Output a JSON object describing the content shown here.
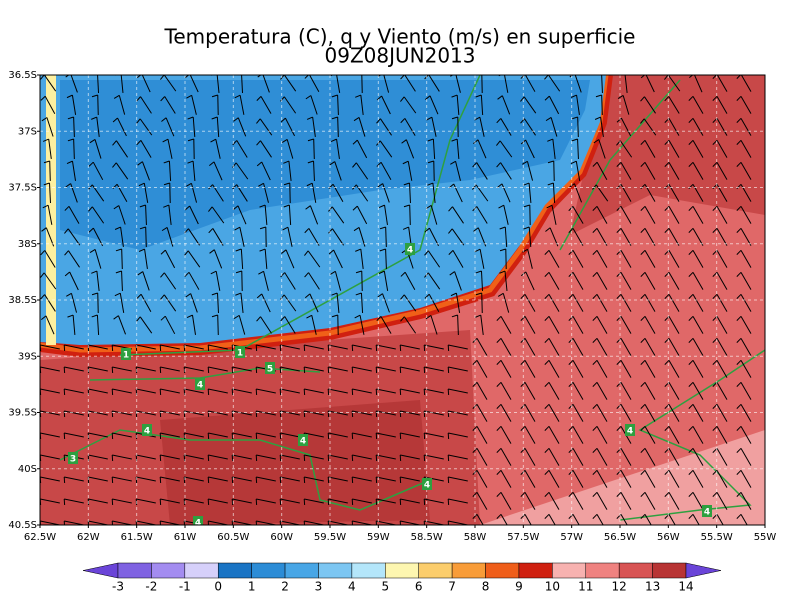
{
  "title": "Temperatura (C), q y Viento (m/s) en superficie",
  "subtitle": "09Z08JUN2013",
  "lat_labels": [
    "36.5S",
    "37S",
    "37.5S",
    "38S",
    "38.5S",
    "39S",
    "39.5S",
    "40S",
    "40.5S"
  ],
  "lon_labels": [
    "62.5W",
    "62W",
    "61.5W",
    "61W",
    "60.5W",
    "60W",
    "59.5W",
    "59W",
    "58.5W",
    "58W",
    "57.5W",
    "57W",
    "56.5W",
    "56W",
    "55.5W",
    "55W"
  ],
  "colorbar": {
    "labels": [
      "-3",
      "-2",
      "-1",
      "0",
      "1",
      "2",
      "3",
      "4",
      "5",
      "6",
      "7",
      "8",
      "9",
      "10",
      "11",
      "12",
      "13",
      "14"
    ],
    "colors": [
      "#6a44d8",
      "#7f62e2",
      "#a38cf0",
      "#d6d0fa",
      "#1a74c4",
      "#2c8cd6",
      "#48a6e6",
      "#7cc6f2",
      "#b4e6fa",
      "#fdf6b0",
      "#fbcd6c",
      "#f89c38",
      "#ef5e1a",
      "#cf2010",
      "#f7b2b0",
      "#ef8280",
      "#d85454",
      "#b83434",
      "#6a44d8"
    ]
  },
  "contour_labels": [
    "1",
    "1",
    "5",
    "4",
    "4",
    "4",
    "3",
    "4",
    "4",
    "4",
    "4",
    "4"
  ]
}
